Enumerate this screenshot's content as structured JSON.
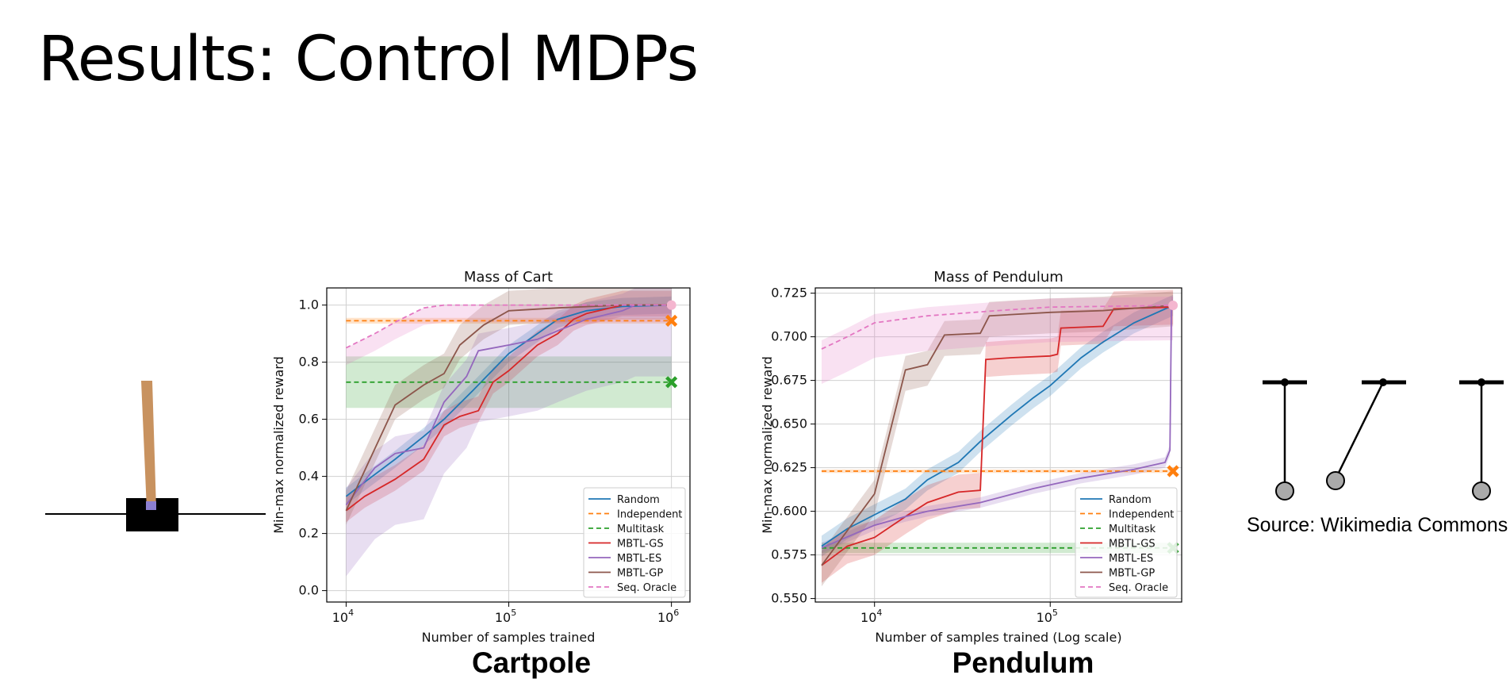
{
  "slide": {
    "title": "Results: Control MDPs",
    "caption_left": "Cartpole",
    "caption_right": "Pendulum",
    "source": "Source: Wikimedia Commons"
  },
  "legend_labels": [
    "Random",
    "Independent",
    "Multitask",
    "MBTL-GS",
    "MBTL-ES",
    "MBTL-GP",
    "Seq. Oracle"
  ],
  "series_colors": {
    "Random": "#1f77b4",
    "Independent": "#ff7f0e",
    "Multitask": "#2ca02c",
    "MBTL-GS": "#d62728",
    "MBTL-ES": "#9467bd",
    "MBTL-GP": "#8c564b",
    "Seq. Oracle": "#e377c2"
  },
  "chart_data": [
    {
      "type": "line",
      "title": "Mass of Cart",
      "xlabel": "Number of samples trained",
      "ylabel": "Min-max normalized reward",
      "xscale": "log",
      "xlim": [
        7600,
        1300000
      ],
      "ylim": [
        -0.04,
        1.06
      ],
      "xticks": [
        {
          "value": 10000,
          "base": "10",
          "exp": "4"
        },
        {
          "value": 100000,
          "base": "10",
          "exp": "5"
        },
        {
          "value": 1000000,
          "base": "10",
          "exp": "6"
        }
      ],
      "yticks": [
        0.0,
        0.2,
        0.4,
        0.6,
        0.8,
        1.0
      ],
      "tick_format": 1,
      "grid": true,
      "legend_position": "lower right",
      "series": [
        {
          "name": "Random",
          "style": "solid",
          "points": [
            [
              10000,
              0.33
            ],
            [
              13000,
              0.38
            ],
            [
              20000,
              0.46
            ],
            [
              30000,
              0.54
            ],
            [
              40000,
              0.6
            ],
            [
              60000,
              0.7
            ],
            [
              100000,
              0.83
            ],
            [
              150000,
              0.9
            ],
            [
              200000,
              0.95
            ],
            [
              300000,
              0.98
            ],
            [
              500000,
              0.995
            ],
            [
              1000000,
              1.0
            ]
          ],
          "band": [
            0.03,
            0.03
          ]
        },
        {
          "name": "Independent",
          "style": "dashed",
          "points": [
            [
              10000,
              0.945
            ],
            [
              1000000,
              0.945
            ]
          ],
          "band": [
            0.01,
            0.01
          ],
          "end_marker": "x"
        },
        {
          "name": "Multitask",
          "style": "dashed",
          "points": [
            [
              10000,
              0.73
            ],
            [
              1000000,
              0.73
            ]
          ],
          "band": [
            0.09,
            0.09
          ],
          "end_marker": "x"
        },
        {
          "name": "MBTL-GS",
          "style": "solid",
          "points": [
            [
              10000,
              0.28
            ],
            [
              13000,
              0.33
            ],
            [
              20000,
              0.39
            ],
            [
              30000,
              0.46
            ],
            [
              40000,
              0.58
            ],
            [
              50000,
              0.61
            ],
            [
              65000,
              0.63
            ],
            [
              80000,
              0.73
            ],
            [
              100000,
              0.77
            ],
            [
              150000,
              0.86
            ],
            [
              200000,
              0.9
            ],
            [
              250000,
              0.95
            ],
            [
              300000,
              0.97
            ],
            [
              500000,
              1.0
            ],
            [
              1000000,
              1.0
            ]
          ],
          "band": [
            0.04,
            0.05
          ]
        },
        {
          "name": "MBTL-ES",
          "style": "solid",
          "points": [
            [
              10000,
              0.3
            ],
            [
              15000,
              0.43
            ],
            [
              20000,
              0.48
            ],
            [
              30000,
              0.5
            ],
            [
              40000,
              0.66
            ],
            [
              55000,
              0.75
            ],
            [
              65000,
              0.84
            ],
            [
              100000,
              0.86
            ],
            [
              150000,
              0.88
            ],
            [
              200000,
              0.91
            ],
            [
              300000,
              0.95
            ],
            [
              500000,
              0.98
            ],
            [
              600000,
              1.0
            ],
            [
              1000000,
              1.0
            ]
          ],
          "band": [
            0.25,
            0.06
          ]
        },
        {
          "name": "MBTL-GP",
          "style": "solid",
          "points": [
            [
              10000,
              0.28
            ],
            [
              20000,
              0.65
            ],
            [
              30000,
              0.72
            ],
            [
              40000,
              0.76
            ],
            [
              50000,
              0.86
            ],
            [
              70000,
              0.93
            ],
            [
              100000,
              0.98
            ],
            [
              200000,
              0.99
            ],
            [
              500000,
              1.0
            ],
            [
              1000000,
              1.0
            ]
          ],
          "band": [
            0.05,
            0.07
          ]
        },
        {
          "name": "Seq. Oracle",
          "style": "dashed",
          "points": [
            [
              10000,
              0.85
            ],
            [
              15000,
              0.9
            ],
            [
              20000,
              0.94
            ],
            [
              30000,
              0.99
            ],
            [
              40000,
              1.0
            ],
            [
              1000000,
              1.0
            ]
          ],
          "band": [
            0.06,
            0.0
          ],
          "end_marker": "o"
        }
      ]
    },
    {
      "type": "line",
      "title": "Mass of Pendulum",
      "xlabel": "Number of samples trained (Log scale)",
      "ylabel": "Min-max normalized reward",
      "xscale": "log",
      "xlim": [
        4600,
        560000
      ],
      "ylim": [
        0.548,
        0.728
      ],
      "xticks": [
        {
          "value": 10000,
          "base": "10",
          "exp": "4"
        },
        {
          "value": 100000,
          "base": "10",
          "exp": "5"
        }
      ],
      "yticks": [
        0.55,
        0.575,
        0.6,
        0.625,
        0.65,
        0.675,
        0.7,
        0.725
      ],
      "tick_format": 3,
      "grid": true,
      "legend_position": "lower right",
      "series": [
        {
          "name": "Random",
          "style": "solid",
          "points": [
            [
              5000,
              0.58
            ],
            [
              7000,
              0.59
            ],
            [
              10000,
              0.598
            ],
            [
              15000,
              0.607
            ],
            [
              20000,
              0.618
            ],
            [
              30000,
              0.628
            ],
            [
              40000,
              0.64
            ],
            [
              60000,
              0.655
            ],
            [
              80000,
              0.665
            ],
            [
              100000,
              0.672
            ],
            [
              150000,
              0.688
            ],
            [
              200000,
              0.697
            ],
            [
              300000,
              0.708
            ],
            [
              500000,
              0.718
            ]
          ],
          "band": [
            0.006,
            0.006
          ]
        },
        {
          "name": "Independent",
          "style": "dashed",
          "points": [
            [
              5000,
              0.623
            ],
            [
              500000,
              0.623
            ]
          ],
          "band": [
            0.001,
            0.001
          ],
          "end_marker": "x"
        },
        {
          "name": "Multitask",
          "style": "dashed",
          "points": [
            [
              5000,
              0.579
            ],
            [
              500000,
              0.579
            ]
          ],
          "band": [
            0.003,
            0.003
          ],
          "end_marker": "x"
        },
        {
          "name": "MBTL-GS",
          "style": "solid",
          "points": [
            [
              5000,
              0.569
            ],
            [
              7000,
              0.58
            ],
            [
              10000,
              0.585
            ],
            [
              15000,
              0.597
            ],
            [
              20000,
              0.605
            ],
            [
              30000,
              0.611
            ],
            [
              40000,
              0.612
            ],
            [
              43000,
              0.687
            ],
            [
              60000,
              0.688
            ],
            [
              100000,
              0.689
            ],
            [
              110000,
              0.69
            ],
            [
              115000,
              0.705
            ],
            [
              200000,
              0.706
            ],
            [
              230000,
              0.716
            ],
            [
              500000,
              0.717
            ]
          ],
          "band": [
            0.01,
            0.01
          ]
        },
        {
          "name": "MBTL-ES",
          "style": "solid",
          "points": [
            [
              5000,
              0.579
            ],
            [
              10000,
              0.592
            ],
            [
              15000,
              0.597
            ],
            [
              20000,
              0.6
            ],
            [
              40000,
              0.605
            ],
            [
              80000,
              0.613
            ],
            [
              150000,
              0.619
            ],
            [
              300000,
              0.624
            ],
            [
              450000,
              0.628
            ],
            [
              480000,
              0.635
            ],
            [
              490000,
              0.72
            ],
            [
              500000,
              0.72
            ]
          ],
          "band": [
            0.003,
            0.003
          ]
        },
        {
          "name": "MBTL-GP",
          "style": "solid",
          "points": [
            [
              5000,
              0.569
            ],
            [
              10000,
              0.61
            ],
            [
              15000,
              0.681
            ],
            [
              20000,
              0.684
            ],
            [
              25000,
              0.701
            ],
            [
              40000,
              0.702
            ],
            [
              45000,
              0.712
            ],
            [
              100000,
              0.714
            ],
            [
              200000,
              0.715
            ],
            [
              500000,
              0.718
            ]
          ],
          "band": [
            0.012,
            0.008
          ]
        },
        {
          "name": "Seq. Oracle",
          "style": "dashed",
          "points": [
            [
              5000,
              0.693
            ],
            [
              7000,
              0.7
            ],
            [
              10000,
              0.708
            ],
            [
              20000,
              0.712
            ],
            [
              50000,
              0.715
            ],
            [
              100000,
              0.717
            ],
            [
              500000,
              0.718
            ]
          ],
          "band": [
            0.02,
            0.005
          ],
          "end_marker": "o"
        }
      ]
    }
  ]
}
